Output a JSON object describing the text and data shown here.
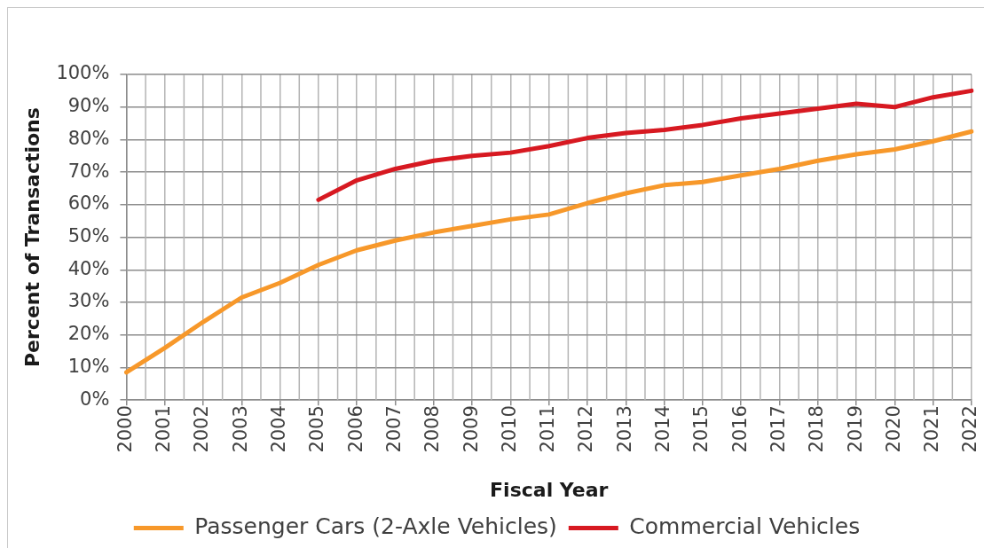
{
  "chart_data": {
    "type": "line",
    "xlabel": "Fiscal Year",
    "ylabel": "Percent of Transactions",
    "categories": [
      "2000",
      "2001",
      "2002",
      "2003",
      "2004",
      "2005",
      "2006",
      "2007",
      "2008",
      "2009",
      "2010",
      "2011",
      "2012",
      "2013",
      "2014",
      "2015",
      "2016",
      "2017",
      "2018",
      "2019",
      "2020",
      "2021",
      "2022"
    ],
    "series": [
      {
        "name": "Passenger Cars (2-Axle Vehicles)",
        "color": "#f7982a",
        "values": [
          8.5,
          16,
          24,
          31.5,
          36,
          41.5,
          46,
          49,
          51.5,
          53.5,
          55.5,
          57,
          60.5,
          63.5,
          66,
          67,
          69,
          71,
          73.5,
          75.5,
          77,
          79.5,
          82.5
        ]
      },
      {
        "name": "Commercial Vehicles",
        "color": "#d71921",
        "values": [
          null,
          null,
          null,
          null,
          null,
          61.5,
          67.5,
          71,
          73.5,
          75,
          76,
          78,
          80.5,
          82,
          83,
          84.5,
          86.5,
          88,
          89.5,
          91,
          90,
          93,
          95
        ]
      }
    ],
    "ylim": [
      0,
      100
    ],
    "yticks": [
      {
        "value": 0,
        "label": "0%"
      },
      {
        "value": 10,
        "label": "10%"
      },
      {
        "value": 20,
        "label": "20%"
      },
      {
        "value": 30,
        "label": "30%"
      },
      {
        "value": 40,
        "label": "40%"
      },
      {
        "value": 50,
        "label": "50%"
      },
      {
        "value": 60,
        "label": "60%"
      },
      {
        "value": 70,
        "label": "70%"
      },
      {
        "value": 80,
        "label": "80%"
      },
      {
        "value": 90,
        "label": "90%"
      },
      {
        "value": 100,
        "label": "100%"
      }
    ],
    "grid": true,
    "legend": "bottom",
    "marker": "none",
    "line_style": "solid"
  }
}
